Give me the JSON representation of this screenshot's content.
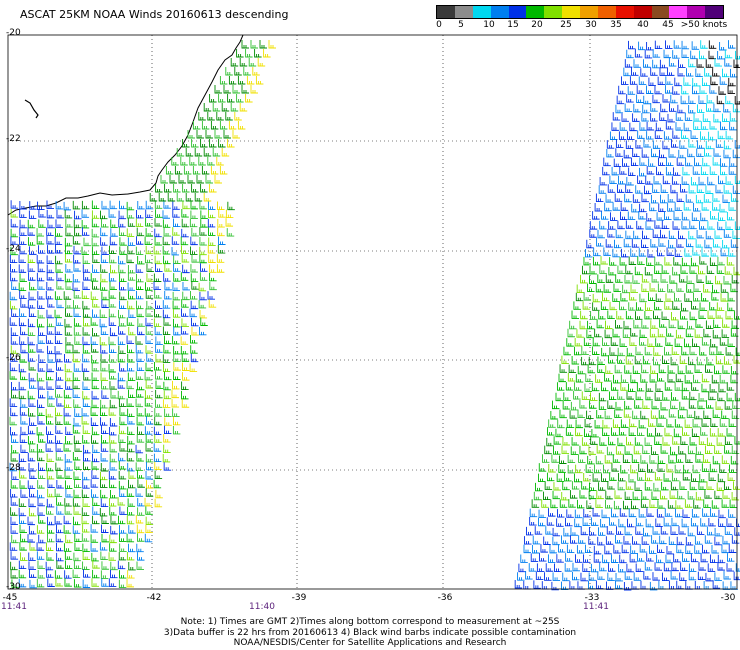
{
  "title": "ASCAT 25KM NOAA Winds 20160613 descending",
  "colorbar": {
    "colors": [
      "#3a3a3a",
      "#8c8c8c",
      "#00d8f0",
      "#007ff0",
      "#0030e8",
      "#00b800",
      "#80e000",
      "#f0e000",
      "#f0a000",
      "#f06000",
      "#e81000",
      "#c00000",
      "#8a4a20",
      "#ff40ff",
      "#b000b0",
      "#500078"
    ],
    "labels": [
      "0",
      "5",
      "10",
      "15",
      "20",
      "25",
      "30",
      "35",
      "40",
      "45",
      ">50 knots"
    ]
  },
  "lat_labels": [
    "-20",
    "-22",
    "-24",
    "-26",
    "-28",
    "-30"
  ],
  "lon_labels": [
    "-45",
    "-42",
    "-39",
    "-36",
    "-33",
    "-30"
  ],
  "time_labels": [
    "11:41",
    "11:40",
    "11:41"
  ],
  "notes": [
    "Note: 1) Times are GMT 2)Times along bottom correspond to measurement at ~25S",
    "3)Data buffer is 22 hrs from 20160613 4) Black wind barbs indicate possible contamination",
    "NOAA/NESDIS/Center for Satellite Applications and Research"
  ]
}
